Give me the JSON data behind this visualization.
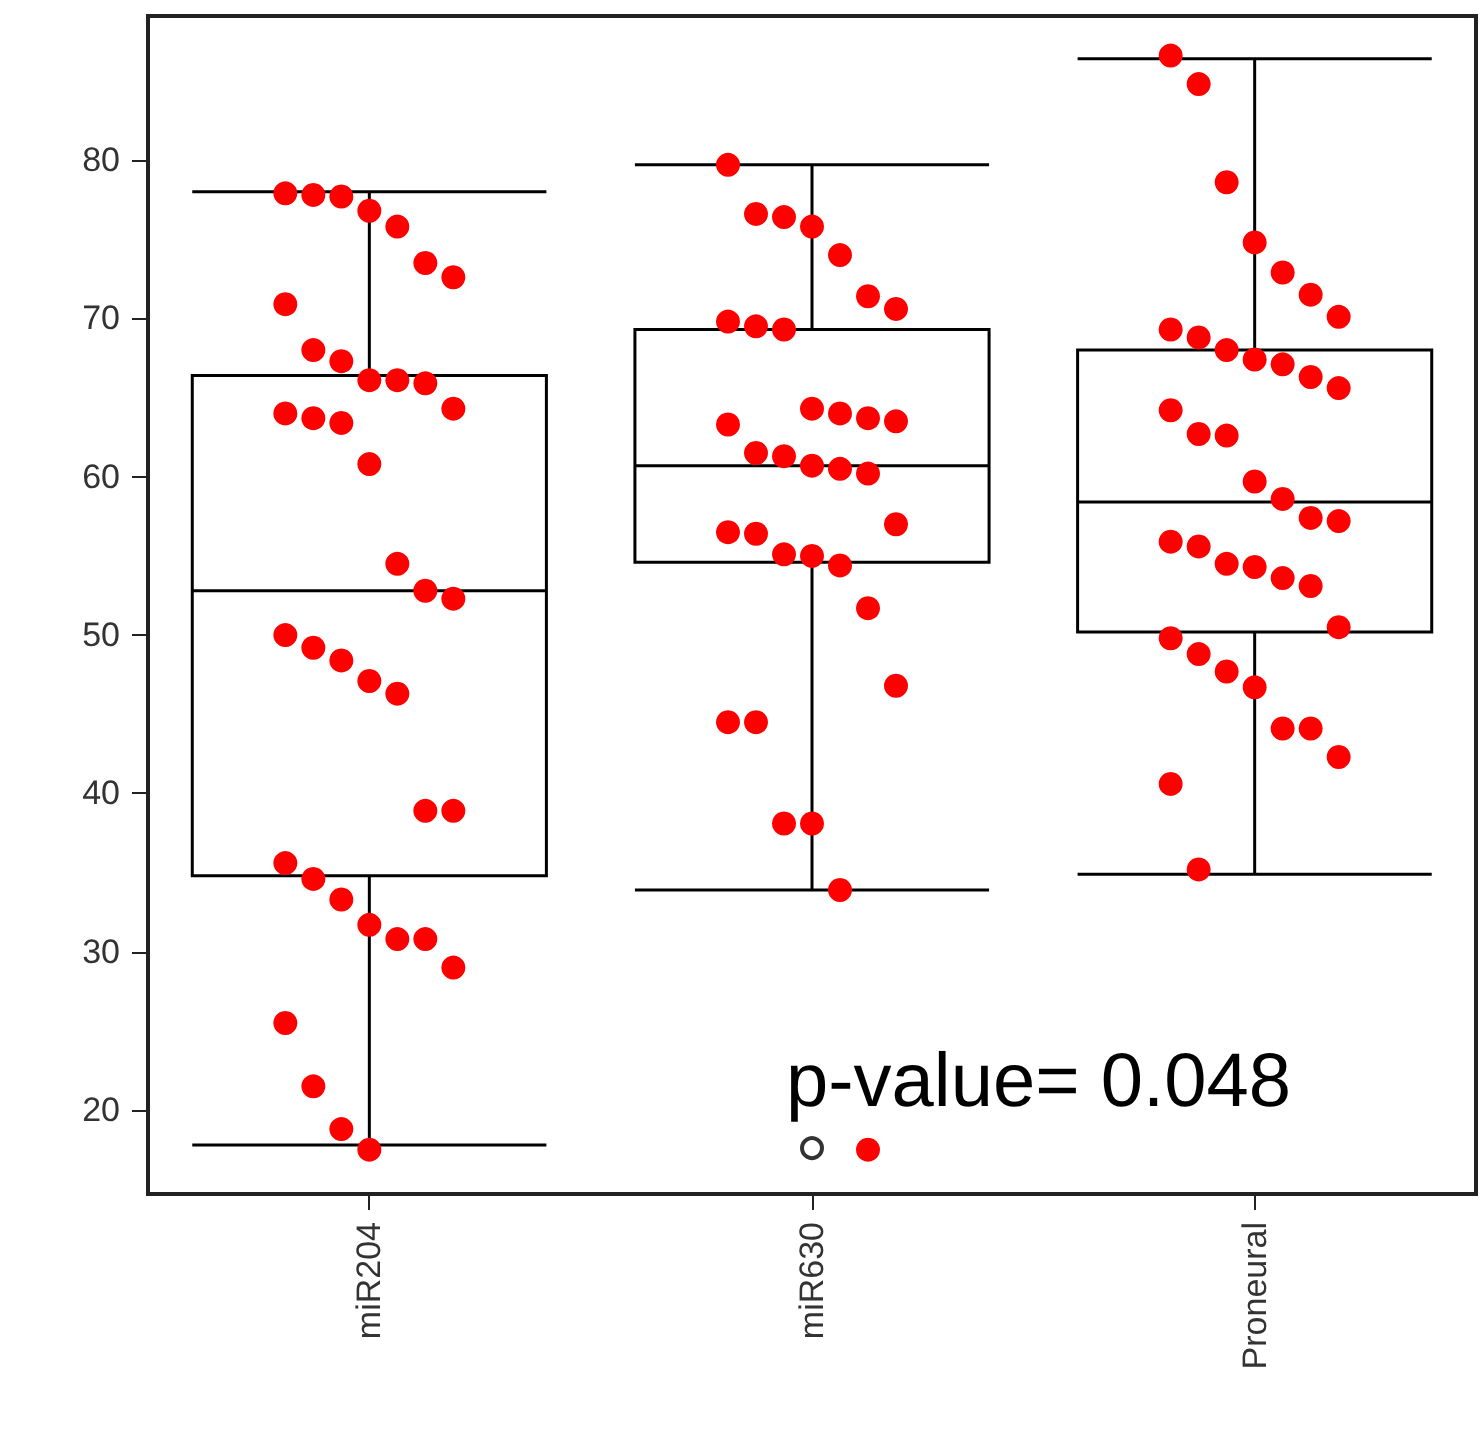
{
  "chart_data": {
    "type": "box",
    "categories": [
      "miR204",
      "miR630",
      "Proneural"
    ],
    "ylim": [
      14.7,
      89.1
    ],
    "yticks": [
      20,
      30,
      40,
      50,
      60,
      70,
      80
    ],
    "grid": false,
    "annotations": [
      "p-value= 0.048"
    ],
    "boxes": [
      {
        "low": 17.8,
        "q1": 34.8,
        "median": 52.8,
        "q3": 66.4,
        "high": 78.0
      },
      {
        "low": 33.9,
        "q1": 54.6,
        "median": 60.7,
        "q3": 69.3,
        "high": 79.7,
        "outliers": [
          17.6
        ]
      },
      {
        "low": 34.9,
        "q1": 50.2,
        "median": 58.4,
        "q3": 68.0,
        "high": 86.4
      }
    ],
    "series": [
      {
        "type": "scatter",
        "color": "#ff0000",
        "marker": "circle",
        "x": [
          "miR204",
          "miR204",
          "miR204",
          "miR204",
          "miR204",
          "miR204",
          "miR204",
          "miR204",
          "miR204",
          "miR204",
          "miR204",
          "miR204",
          "miR204",
          "miR204",
          "miR204",
          "miR204",
          "miR204",
          "miR204",
          "miR204",
          "miR204",
          "miR204",
          "miR204",
          "miR204",
          "miR204",
          "miR204",
          "miR204",
          "miR204",
          "miR204",
          "miR204",
          "miR204",
          "miR204",
          "miR204",
          "miR204",
          "miR204",
          "miR204",
          "miR204",
          "miR204",
          "miR204",
          "miR204"
        ],
        "values": [
          77.9,
          77.8,
          77.7,
          76.8,
          75.8,
          73.5,
          72.6,
          70.9,
          68.0,
          67.3,
          66.1,
          66.1,
          65.9,
          64.3,
          64.0,
          63.7,
          63.4,
          60.8,
          54.5,
          52.8,
          52.3,
          50.0,
          49.2,
          48.4,
          47.1,
          46.3,
          38.9,
          38.9,
          35.6,
          34.6,
          33.3,
          31.7,
          30.8,
          30.8,
          29.0,
          25.5,
          21.5,
          18.8,
          17.5
        ]
      },
      {
        "type": "scatter",
        "color": "#ff0000",
        "marker": "circle",
        "x": [
          "miR630",
          "miR630",
          "miR630",
          "miR630",
          "miR630",
          "miR630",
          "miR630",
          "miR630",
          "miR630",
          "miR630",
          "miR630",
          "miR630",
          "miR630",
          "miR630",
          "miR630",
          "miR630",
          "miR630",
          "miR630",
          "miR630",
          "miR630",
          "miR630",
          "miR630",
          "miR630",
          "miR630",
          "miR630",
          "miR630",
          "miR630",
          "miR630",
          "miR630",
          "miR630",
          "miR630",
          "miR630",
          "miR630",
          "miR630"
        ],
        "values": [
          79.7,
          76.6,
          76.4,
          75.8,
          74.0,
          71.4,
          70.6,
          69.8,
          69.5,
          69.3,
          64.3,
          64.0,
          63.7,
          63.5,
          63.3,
          61.5,
          61.3,
          60.7,
          60.5,
          60.2,
          57.0,
          56.5,
          56.4,
          55.1,
          55.0,
          54.4,
          51.7,
          46.8,
          44.5,
          44.5,
          38.1,
          38.1,
          33.9,
          17.5
        ]
      },
      {
        "type": "scatter",
        "color": "#ff0000",
        "marker": "circle",
        "x": [
          "Proneural",
          "Proneural",
          "Proneural",
          "Proneural",
          "Proneural",
          "Proneural",
          "Proneural",
          "Proneural",
          "Proneural",
          "Proneural",
          "Proneural",
          "Proneural",
          "Proneural",
          "Proneural",
          "Proneural",
          "Proneural",
          "Proneural",
          "Proneural",
          "Proneural",
          "Proneural",
          "Proneural",
          "Proneural",
          "Proneural",
          "Proneural",
          "Proneural",
          "Proneural",
          "Proneural",
          "Proneural",
          "Proneural",
          "Proneural",
          "Proneural",
          "Proneural",
          "Proneural",
          "Proneural",
          "Proneural",
          "Proneural",
          "Proneural"
        ],
        "values": [
          86.6,
          84.8,
          78.6,
          74.8,
          72.9,
          71.5,
          70.1,
          69.3,
          68.8,
          68.0,
          67.4,
          67.1,
          66.3,
          65.6,
          64.2,
          62.7,
          62.6,
          59.7,
          58.6,
          57.4,
          57.2,
          55.9,
          55.6,
          54.5,
          54.3,
          53.6,
          53.1,
          50.5,
          49.8,
          48.8,
          47.7,
          46.7,
          44.1,
          44.1,
          42.3,
          40.6,
          35.2
        ]
      }
    ]
  }
}
